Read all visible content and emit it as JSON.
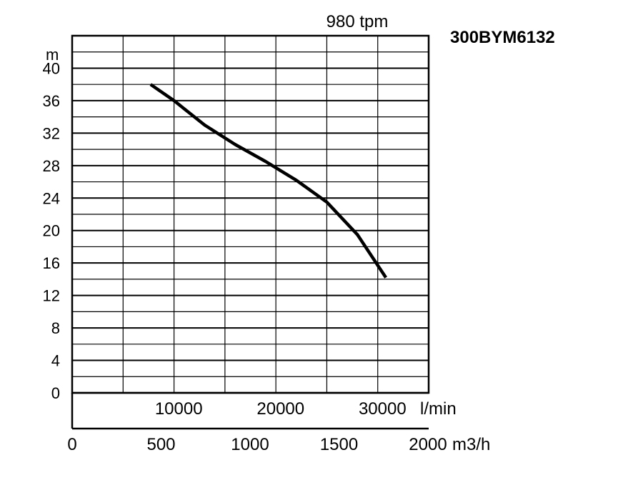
{
  "chart_data": {
    "type": "line",
    "title": "980 tpm",
    "model": "300BYM6132",
    "ylabel": "m",
    "xlabel": "l/min",
    "x2label": "m3/h",
    "xlim": [
      0,
      35000
    ],
    "ylim": [
      0,
      44
    ],
    "x_ticks": [
      10000,
      20000,
      30000
    ],
    "x_tick_labels": [
      "10000",
      "20000",
      "30000"
    ],
    "x2_ticks": [
      0,
      500,
      1000,
      1500,
      2000
    ],
    "x2_tick_labels": [
      "0",
      "500",
      "1000",
      "1500",
      "2000"
    ],
    "y_ticks": [
      0,
      4,
      8,
      12,
      16,
      20,
      24,
      28,
      32,
      36,
      40
    ],
    "y_tick_labels": [
      "0",
      "4",
      "8",
      "12",
      "16",
      "20",
      "24",
      "28",
      "32",
      "36",
      "40"
    ],
    "grid": true,
    "series": [
      {
        "x": [
          7700,
          10000,
          13000,
          16000,
          19000,
          22000,
          25000,
          28000,
          30800
        ],
        "values": [
          38,
          36,
          33,
          30.6,
          28.5,
          26.2,
          23.5,
          19.5,
          14.2
        ]
      }
    ]
  }
}
